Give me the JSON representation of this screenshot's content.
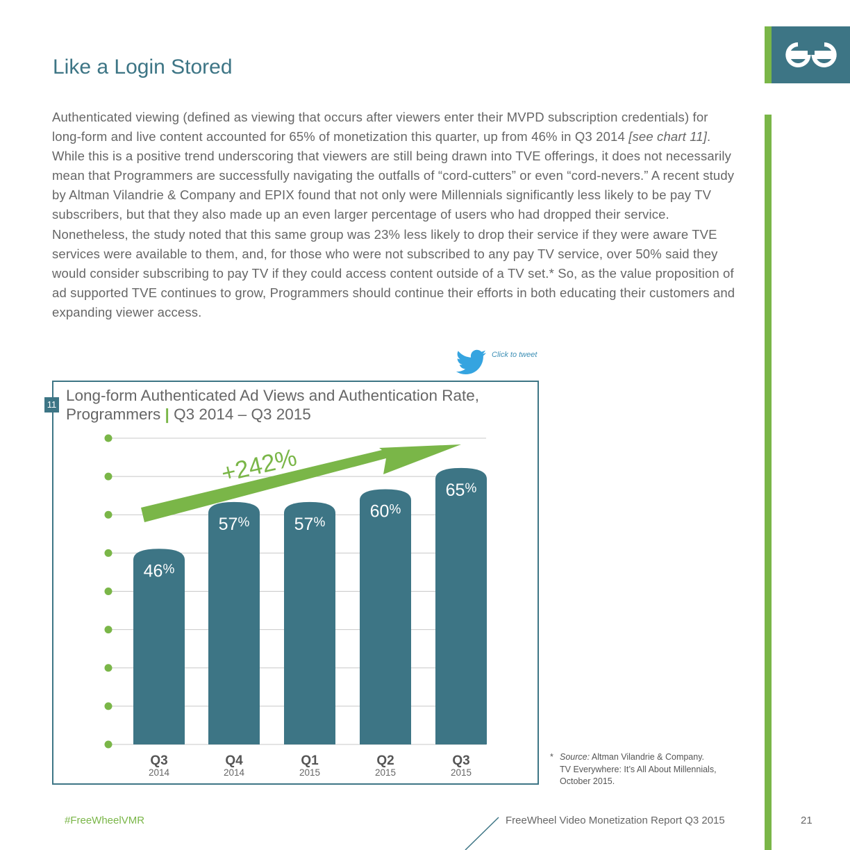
{
  "page": {
    "title": "Like a Login Stored",
    "body": {
      "part1": "Authenticated viewing (defined as viewing that occurs after viewers enter their MVPD subscription credentials) for long-form and live content accounted for 65% of monetization this quarter, up from 46% in Q3 2014 ",
      "ref": "[see chart 11]",
      "part2": ". While this is a positive trend underscoring that viewers are still being drawn into TVE offerings, it does not necessarily mean that Programmers are successfully navigating the outfalls of “cord-cutters” or even “cord-nevers.” A recent study by Altman Vilandrie & Company and EPIX found that not only were Millennials significantly less likely to be pay TV subscribers, but that they also made up an even larger percentage of users who had dropped their service. Nonetheless, the study noted that this same group was 23% less likely to drop their service if they were aware TVE services were available to them, and, for those who were not subscribed to any pay TV service, over 50% said they would consider subscribing to pay TV if they could access content outside of a TV set.* So, as the value proposition of ad supported TVE continues to grow, Programmers should continue their efforts in both educating their customers and expanding viewer access."
    },
    "tweet_label": "Click to tweet"
  },
  "chart": {
    "number": "11",
    "title_line1": "Long-form Authenticated Ad Views and Authentication Rate,",
    "title_line2a": "Programmers",
    "title_sep": "|",
    "title_line2b": "Q3 2014 – Q3 2015",
    "growth_label": "+242%"
  },
  "chart_data": {
    "type": "bar",
    "title": "Long-form Authenticated Ad Views and Authentication Rate, Programmers | Q3 2014 – Q3 2015",
    "categories": [
      "Q3 2014",
      "Q4 2014",
      "Q1 2015",
      "Q2 2015",
      "Q3 2015"
    ],
    "quarters": [
      "Q3",
      "Q4",
      "Q1",
      "Q2",
      "Q3"
    ],
    "years": [
      "2014",
      "2014",
      "2015",
      "2015",
      "2015"
    ],
    "values": [
      46,
      57,
      57,
      60,
      65
    ],
    "unit": "%",
    "ylim": [
      0,
      72
    ],
    "annotation": "+242%",
    "xlabel": "",
    "ylabel": ""
  },
  "source": {
    "star": "*",
    "label": "Source:",
    "line1": "Altman Vilandrie & Company.",
    "line2": "TV Everywhere: It’s All About Millennials,",
    "line3": "October 2015."
  },
  "footer": {
    "hashtag": "#FreeWheelVMR",
    "report": "FreeWheel Video Monetization Report Q3 2015",
    "page_number": "21"
  },
  "colors": {
    "teal": "#3d7585",
    "green": "#7ab648",
    "text": "#666666"
  }
}
